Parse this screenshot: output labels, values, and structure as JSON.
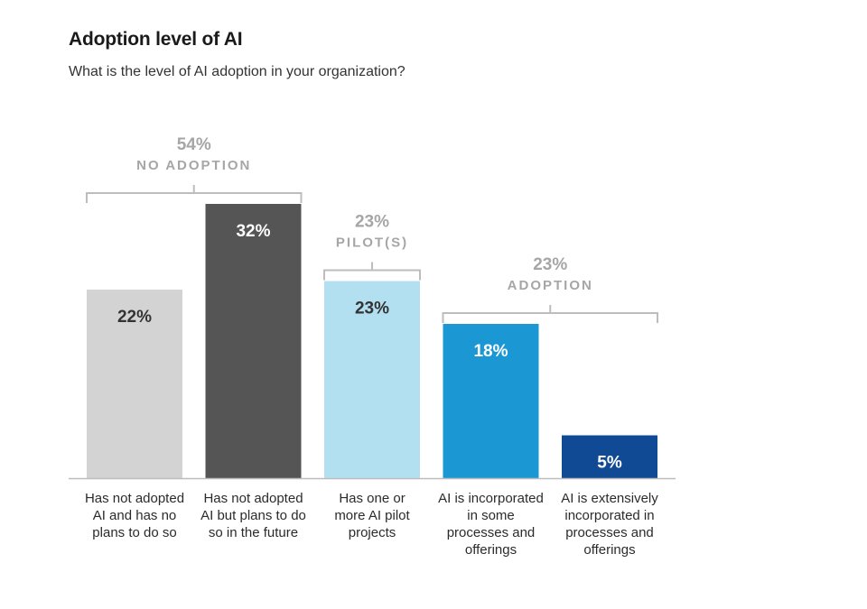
{
  "title": "Adoption level of AI",
  "subtitle": "What is the level of AI adoption in your organization?",
  "chart_data": {
    "type": "bar",
    "title": "Adoption level of AI",
    "subtitle": "What is the level of AI adoption in your organization?",
    "categories": [
      "Has not adopted AI and has no plans to do so",
      "Has not adopted AI but plans to do so in the future",
      "Has one or more AI pilot projects",
      "AI is incorporated in some processes and offerings",
      "AI is extensively incorporated in processes and offerings"
    ],
    "category_lines": [
      [
        "Has not adopted",
        "AI and has no",
        "plans to do so"
      ],
      [
        "Has not adopted",
        "AI but plans to do",
        "so in the future"
      ],
      [
        "Has one or",
        "more AI pilot",
        "projects"
      ],
      [
        "AI is incorporated",
        "in some",
        "processes and",
        "offerings"
      ],
      [
        "AI is extensively",
        "incorporated in",
        "processes and",
        "offerings"
      ]
    ],
    "values": [
      22,
      32,
      23,
      18,
      5
    ],
    "value_labels": [
      "22%",
      "32%",
      "23%",
      "18%",
      "5%"
    ],
    "bar_colors": [
      "#d3d3d3",
      "#555555",
      "#b3e0f0",
      "#1b98d3",
      "#114a94"
    ],
    "value_label_colors": [
      "#333333",
      "#ffffff",
      "#333333",
      "#ffffff",
      "#ffffff"
    ],
    "ylim": [
      0,
      32
    ],
    "groups": [
      {
        "percent": "54%",
        "label": "NO ADOPTION",
        "bars": [
          0,
          1
        ]
      },
      {
        "percent": "23%",
        "label": "PILOT(S)",
        "bars": [
          2,
          2
        ]
      },
      {
        "percent": "23%",
        "label": "ADOPTION",
        "bars": [
          3,
          4
        ]
      }
    ],
    "grid": false,
    "legend": "none"
  },
  "colors": {
    "group_label": "#a6a6a6",
    "bracket": "#bdbdbd",
    "baseline": "#bdbdbd"
  }
}
